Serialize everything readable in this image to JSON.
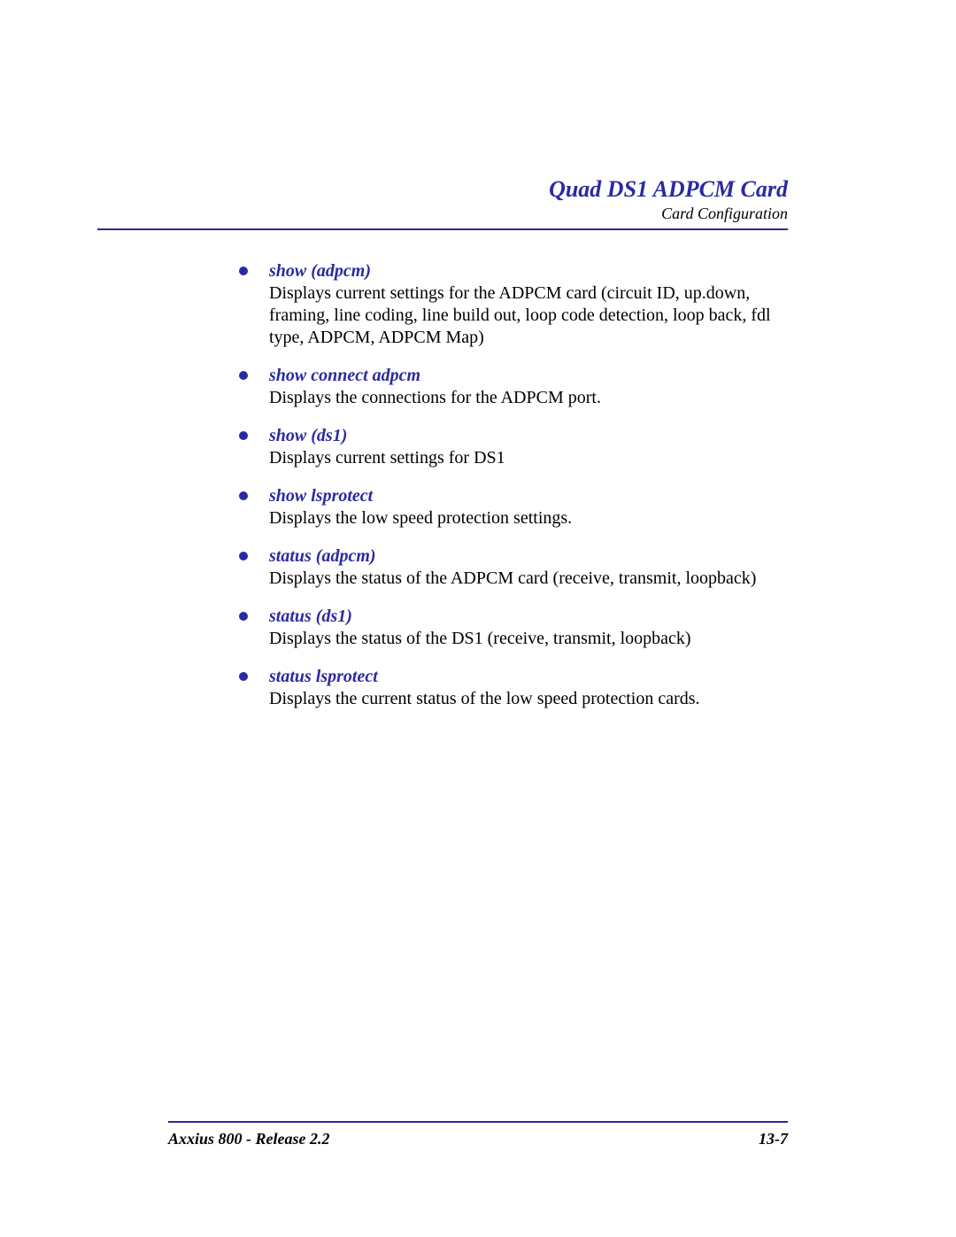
{
  "colors": {
    "accent": "#2b2aa0",
    "text": "#000000",
    "background": "#ffffff",
    "rule": "#2b2aa0"
  },
  "typography": {
    "body_font": "Times New Roman",
    "body_size_pt": 15,
    "header_title_size_pt": 20,
    "header_sub_size_pt": 13,
    "footer_size_pt": 13
  },
  "header": {
    "title": "Quad DS1 ADPCM Card",
    "subtitle": "Card Configuration"
  },
  "commands": [
    {
      "command": "show (adpcm)",
      "description": "Displays current settings for the ADPCM card (circuit ID, up.down, framing, line coding, line build out, loop code detection, loop back, fdl type, ADPCM, ADPCM Map)"
    },
    {
      "command": "show connect adpcm",
      "description": "Displays the connections for the ADPCM port."
    },
    {
      "command": "show (ds1)",
      "description": "Displays current settings for DS1"
    },
    {
      "command": "show lsprotect",
      "description": "Displays the low speed protection settings."
    },
    {
      "command": "status (adpcm)",
      "description": "Displays the status of the ADPCM card (receive, transmit, loopback)"
    },
    {
      "command": "status (ds1)",
      "description": "Displays the status of the DS1 (receive, transmit, loopback)"
    },
    {
      "command": "status lsprotect",
      "description": "Displays the current status of the low speed protection cards."
    }
  ],
  "footer": {
    "left": "Axxius 800 - Release 2.2",
    "right": "13-7"
  }
}
